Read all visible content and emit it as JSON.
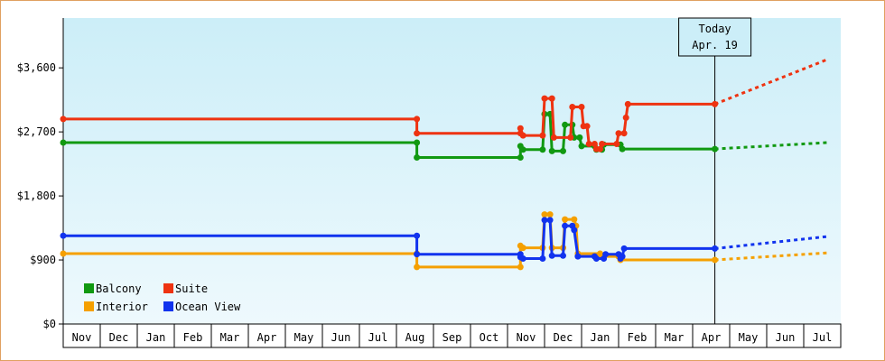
{
  "chart_data": {
    "type": "line",
    "title": "",
    "xlabel": "",
    "ylabel": "",
    "ylim": [
      0,
      4300
    ],
    "y_ticks": [
      "$0",
      "$900",
      "$1,800",
      "$2,700",
      "$3,600"
    ],
    "y_tick_values": [
      0,
      900,
      1800,
      2700,
      3600
    ],
    "x_ticks": [
      "Nov",
      "Dec",
      "Jan",
      "Feb",
      "Mar",
      "Apr",
      "May",
      "Jun",
      "Jul",
      "Aug",
      "Sep",
      "Oct",
      "Nov",
      "Dec",
      "Jan",
      "Feb",
      "Mar",
      "Apr",
      "May",
      "Jun",
      "Jul"
    ],
    "x_unit": "months since start of first Nov",
    "today": {
      "line1": "Today",
      "line2": "Apr. 19",
      "x": 17.6
    },
    "background": {
      "top": "#cceef8",
      "bottom": "#eef9fd"
    },
    "legend_position": "bottom-left",
    "grid": false,
    "series": [
      {
        "name": "Balcony",
        "color": "#119911",
        "points": [
          [
            0.0,
            2550
          ],
          [
            9.55,
            2550
          ],
          [
            9.55,
            2340
          ],
          [
            12.35,
            2340
          ],
          [
            12.35,
            2500
          ],
          [
            12.42,
            2450
          ],
          [
            12.95,
            2450
          ],
          [
            13.0,
            2950
          ],
          [
            13.15,
            2950
          ],
          [
            13.2,
            2430
          ],
          [
            13.5,
            2430
          ],
          [
            13.55,
            2800
          ],
          [
            13.75,
            2800
          ],
          [
            13.8,
            2620
          ],
          [
            13.95,
            2620
          ],
          [
            14.0,
            2500
          ],
          [
            14.35,
            2500
          ],
          [
            14.4,
            2450
          ],
          [
            14.55,
            2450
          ],
          [
            14.6,
            2520
          ],
          [
            15.05,
            2520
          ],
          [
            15.1,
            2460
          ],
          [
            17.6,
            2460
          ]
        ],
        "forecast": [
          [
            17.6,
            2460
          ],
          [
            20.65,
            2550
          ]
        ]
      },
      {
        "name": "Suite",
        "color": "#ee3311",
        "points": [
          [
            0.0,
            2880
          ],
          [
            9.55,
            2880
          ],
          [
            9.55,
            2680
          ],
          [
            12.35,
            2680
          ],
          [
            12.35,
            2750
          ],
          [
            12.42,
            2650
          ],
          [
            12.95,
            2650
          ],
          [
            13.0,
            3170
          ],
          [
            13.2,
            3170
          ],
          [
            13.25,
            2620
          ],
          [
            13.7,
            2620
          ],
          [
            13.75,
            3050
          ],
          [
            14.0,
            3050
          ],
          [
            14.05,
            2780
          ],
          [
            14.15,
            2780
          ],
          [
            14.2,
            2530
          ],
          [
            14.35,
            2530
          ],
          [
            14.4,
            2460
          ],
          [
            14.5,
            2460
          ],
          [
            14.55,
            2530
          ],
          [
            14.95,
            2530
          ],
          [
            15.0,
            2680
          ],
          [
            15.15,
            2680
          ],
          [
            15.2,
            2900
          ],
          [
            15.25,
            3090
          ],
          [
            17.6,
            3090
          ]
        ],
        "forecast": [
          [
            17.6,
            3090
          ],
          [
            20.65,
            3720
          ]
        ]
      },
      {
        "name": "Interior",
        "color": "#f5a000",
        "points": [
          [
            0.0,
            990
          ],
          [
            9.55,
            990
          ],
          [
            9.55,
            800
          ],
          [
            12.35,
            800
          ],
          [
            12.35,
            1100
          ],
          [
            12.42,
            1070
          ],
          [
            12.95,
            1070
          ],
          [
            13.0,
            1540
          ],
          [
            13.15,
            1540
          ],
          [
            13.2,
            1070
          ],
          [
            13.5,
            1070
          ],
          [
            13.55,
            1470
          ],
          [
            13.8,
            1470
          ],
          [
            13.85,
            1380
          ],
          [
            13.9,
            990
          ],
          [
            14.5,
            990
          ],
          [
            14.55,
            950
          ],
          [
            15.0,
            950
          ],
          [
            15.05,
            900
          ],
          [
            17.6,
            900
          ]
        ],
        "forecast": [
          [
            17.6,
            900
          ],
          [
            20.65,
            1000
          ]
        ]
      },
      {
        "name": "Ocean View",
        "color": "#1133ee",
        "points": [
          [
            0.0,
            1240
          ],
          [
            9.55,
            1240
          ],
          [
            9.55,
            980
          ],
          [
            12.35,
            980
          ],
          [
            12.35,
            940
          ],
          [
            12.42,
            920
          ],
          [
            12.95,
            920
          ],
          [
            13.0,
            1460
          ],
          [
            13.15,
            1460
          ],
          [
            13.2,
            960
          ],
          [
            13.5,
            960
          ],
          [
            13.55,
            1380
          ],
          [
            13.75,
            1380
          ],
          [
            13.8,
            1320
          ],
          [
            13.9,
            950
          ],
          [
            14.35,
            950
          ],
          [
            14.4,
            920
          ],
          [
            14.6,
            920
          ],
          [
            14.65,
            980
          ],
          [
            15.0,
            980
          ],
          [
            15.05,
            920
          ],
          [
            15.1,
            950
          ],
          [
            15.15,
            1060
          ],
          [
            17.6,
            1060
          ]
        ],
        "forecast": [
          [
            17.6,
            1060
          ],
          [
            20.65,
            1230
          ]
        ]
      }
    ]
  }
}
